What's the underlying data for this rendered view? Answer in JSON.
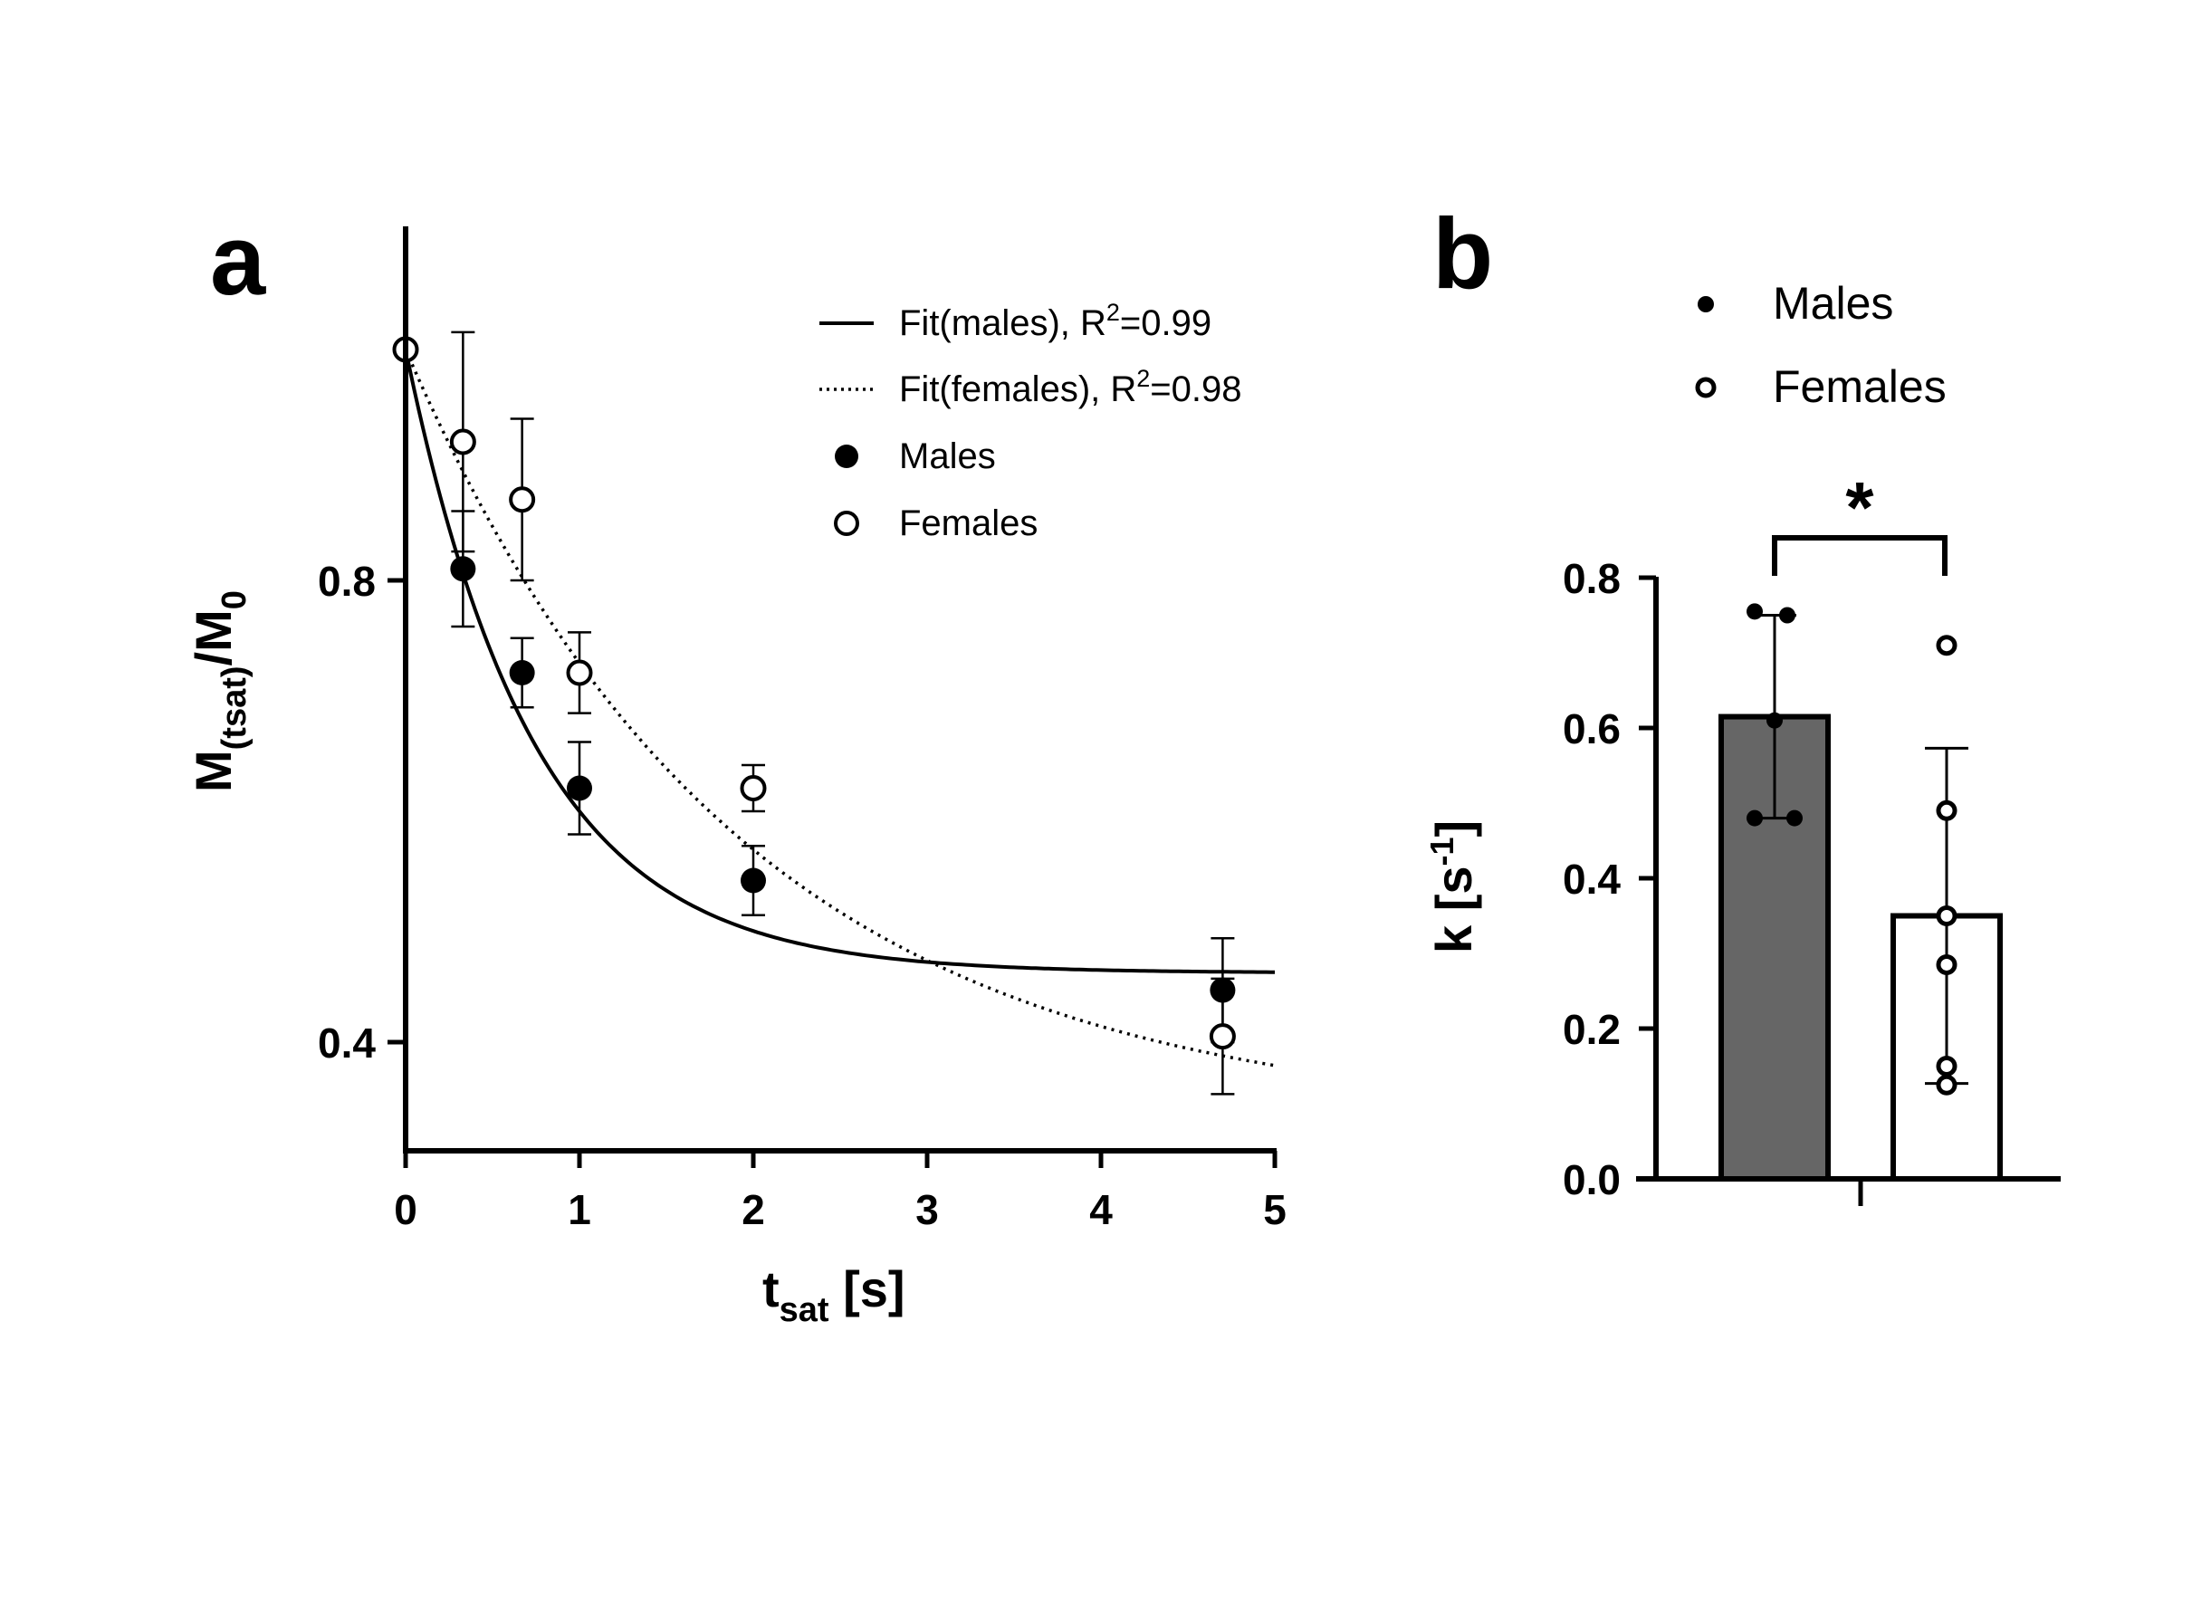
{
  "chart_data": [
    {
      "panel": "a",
      "type": "scatter",
      "x_axis": {
        "label_main": "t",
        "label_sub": "sat",
        "label_suffix": " [s]",
        "range": [
          0,
          5
        ],
        "ticks": [
          "0",
          "1",
          "2",
          "3",
          "4",
          "5"
        ]
      },
      "y_axis": {
        "label_main": "M",
        "label_sub": "(tsat)",
        "label_mid": "/M",
        "label_sub2": "0",
        "range": [
          0.3,
          1.1
        ],
        "ticks": [
          {
            "value": 0.8,
            "label": "0.8"
          },
          {
            "value": 0.4,
            "label": "0.4"
          }
        ]
      },
      "legend": [
        {
          "id": "fit-males",
          "text": "Fit(males), R",
          "sup": "2",
          "tail": "=0.99",
          "style": "solid-line"
        },
        {
          "id": "fit-females",
          "text": "Fit(females), R",
          "sup": "2",
          "tail": "=0.98",
          "style": "dotted-line"
        },
        {
          "id": "males",
          "text": "Males",
          "style": "filled-circle"
        },
        {
          "id": "females",
          "text": "Females",
          "style": "open-circle"
        }
      ],
      "series": [
        {
          "name": "Males",
          "marker": "filled",
          "points": [
            {
              "x": 0.0,
              "y": 1.0,
              "err": 0
            },
            {
              "x": 0.33,
              "y": 0.81,
              "err": 0.05
            },
            {
              "x": 0.67,
              "y": 0.72,
              "err": 0.03
            },
            {
              "x": 1.0,
              "y": 0.62,
              "err": 0.04
            },
            {
              "x": 2.0,
              "y": 0.54,
              "err": 0.03
            },
            {
              "x": 4.7,
              "y": 0.445,
              "err": 0.045
            }
          ]
        },
        {
          "name": "Females",
          "marker": "open",
          "points": [
            {
              "x": 0.0,
              "y": 1.0,
              "err": 0
            },
            {
              "x": 0.33,
              "y": 0.92,
              "err": 0.095
            },
            {
              "x": 0.67,
              "y": 0.87,
              "err": 0.07
            },
            {
              "x": 1.0,
              "y": 0.72,
              "err": 0.035
            },
            {
              "x": 2.0,
              "y": 0.62,
              "err": 0.02
            },
            {
              "x": 4.7,
              "y": 0.405,
              "err": 0.05
            }
          ]
        }
      ],
      "fits": [
        {
          "name": "Fit(males)",
          "style": "solid",
          "model": "exp",
          "plateau": 0.46,
          "span": 0.54,
          "k": 1.35
        },
        {
          "name": "Fit(females)",
          "style": "dotted",
          "model": "exp",
          "plateau": 0.33,
          "span": 0.67,
          "k": 0.52
        }
      ]
    },
    {
      "panel": "b",
      "type": "bar",
      "y_axis": {
        "label_main": "k [s",
        "label_sup": "-1",
        "label_suffix": "]",
        "range": [
          0,
          0.8
        ],
        "ticks": [
          "0.0",
          "0.2",
          "0.4",
          "0.6",
          "0.8"
        ]
      },
      "categories": [
        "Males",
        "Females"
      ],
      "legend": [
        {
          "text": "Males",
          "style": "filled-dot"
        },
        {
          "text": "Females",
          "style": "open-dot"
        }
      ],
      "bars": [
        {
          "name": "Males",
          "mean": 0.615,
          "sd_upper": 0.75,
          "sd_lower": 0.48,
          "color": "#666666",
          "points": [
            0.755,
            0.75,
            0.61,
            0.48,
            0.48
          ]
        },
        {
          "name": "Females",
          "mean": 0.35,
          "sd_upper": 0.573,
          "sd_lower": 0.127,
          "color": "#ffffff",
          "points": [
            0.71,
            0.49,
            0.35,
            0.285,
            0.15,
            0.125
          ]
        }
      ],
      "significance": "*"
    }
  ],
  "labels": {
    "panel_a": "a",
    "panel_b": "b"
  },
  "colors": {
    "ink": "#000000",
    "male_bar": "#666666",
    "female_bar": "#ffffff"
  }
}
